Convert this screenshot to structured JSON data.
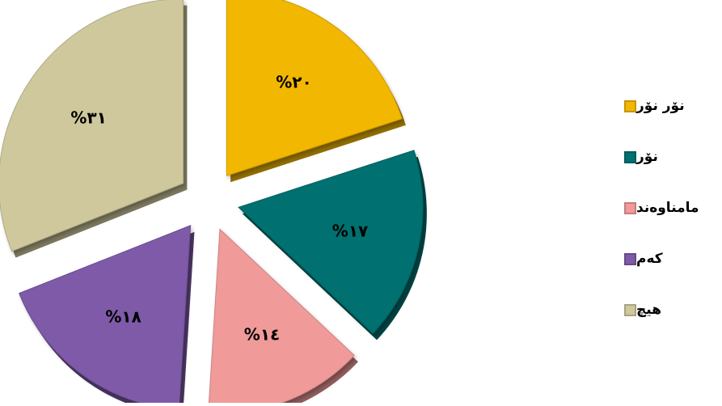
{
  "chart_data": {
    "type": "pie",
    "title": "",
    "categories": [
      "نۆر نۆر",
      "نۆر",
      "مامناوەند",
      "کەم",
      "هیچ"
    ],
    "values": [
      20,
      17,
      14,
      18,
      31
    ],
    "value_labels": [
      "%٢٠",
      "%١٧",
      "%١٤",
      "%١٨",
      "%٣١"
    ],
    "colors": [
      "#F2B705",
      "#007070",
      "#F09A9A",
      "#7E5AA8",
      "#CFC89D"
    ],
    "exploded": true,
    "legend_position": "right"
  }
}
